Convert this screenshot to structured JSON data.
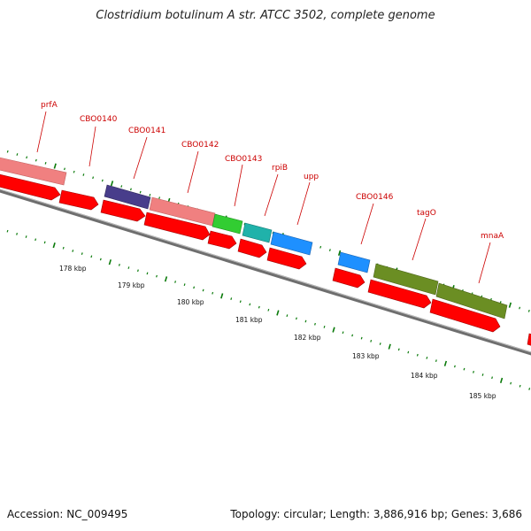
{
  "title": "Clostridium botulinum A str. ATCC 3502, complete genome",
  "footer": {
    "accession": "Accession: NC_009495",
    "topology": "Topology: circular; Length: 3,886,916 bp; Genes: 3,686"
  },
  "kbp_labels": [
    "178 kbp",
    "179 kbp",
    "180 kbp",
    "181 kbp",
    "182 kbp",
    "183 kbp",
    "184 kbp",
    "185 kbp"
  ],
  "gene_labels": [
    "prfA",
    "CBO0140",
    "CBO0141",
    "CBO0142",
    "CBO0143",
    "rpiB",
    "upp",
    "CBO0146",
    "tagO",
    "mnaA"
  ],
  "colors": {
    "cds": "#ff0000",
    "prfA": "#f08080",
    "CBO0141": "#483d8b",
    "CBO0142": "#f08080",
    "CBO0143": "#32cd32",
    "rpiB": "#20b2aa",
    "upp": "#1e90ff",
    "CBO0146": "#1e90ff",
    "tagO": "#6b8e23",
    "mnaA": "#6b8e23",
    "backbone": "#808080",
    "ticks": "#0a7a0a",
    "label": "#cc0000"
  }
}
